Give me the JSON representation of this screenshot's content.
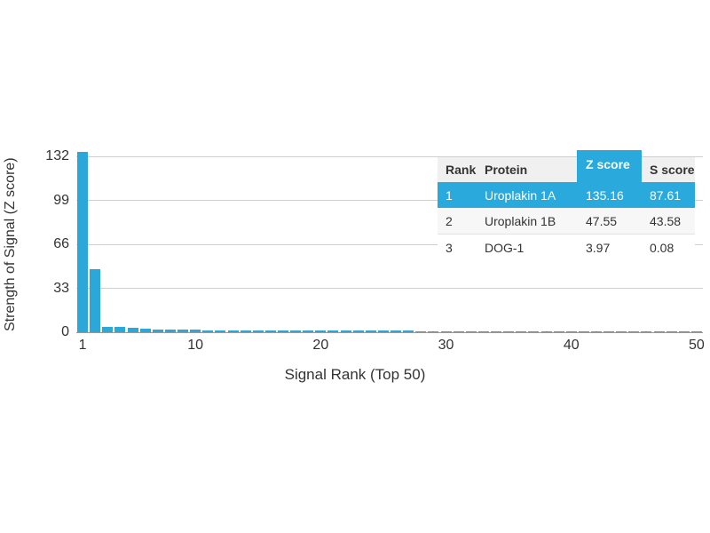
{
  "chart_data": {
    "type": "bar",
    "title": "",
    "xlabel": "Signal Rank (Top 50)",
    "ylabel": "Strength of Signal (Z score)",
    "x": [
      1,
      2,
      3,
      4,
      5,
      6,
      7,
      8,
      9,
      10,
      11,
      12,
      13,
      14,
      15,
      16,
      17,
      18,
      19,
      20,
      21,
      22,
      23,
      24,
      25,
      26,
      27,
      28,
      29,
      30,
      31,
      32,
      33,
      34,
      35,
      36,
      37,
      38,
      39,
      40,
      41,
      42,
      43,
      44,
      45,
      46,
      47,
      48,
      49,
      50
    ],
    "values": [
      135.16,
      47.55,
      3.97,
      3.85,
      3.2,
      2.6,
      2.2,
      1.95,
      1.8,
      1.7,
      1.62,
      1.55,
      1.5,
      1.45,
      1.4,
      1.36,
      1.32,
      1.28,
      1.25,
      1.22,
      1.19,
      1.16,
      1.13,
      1.1,
      1.08,
      1.05,
      1.03,
      1.01,
      0.99,
      0.97,
      0.95,
      0.93,
      0.91,
      0.9,
      0.88,
      0.87,
      0.85,
      0.84,
      0.82,
      0.81,
      0.8,
      0.78,
      0.77,
      0.76,
      0.75,
      0.74,
      0.73,
      0.72,
      0.71,
      0.7
    ],
    "yticks": [
      0,
      33,
      66,
      99,
      132
    ],
    "xticks": [
      1,
      10,
      20,
      30,
      40,
      50
    ],
    "ylim": [
      0,
      136
    ],
    "grid": true,
    "legend": "none",
    "bar_color": "#2BA7DA",
    "gridline_color": "#cfcfcf",
    "axis_line_color": "#999999"
  },
  "table": {
    "columns": [
      "Rank",
      "Protein",
      "Z score",
      "S score"
    ],
    "highlight_color": "#29A9DC",
    "header_bg": "#f0f0f0",
    "rows": [
      {
        "rank": "1",
        "protein": "Uroplakin 1A",
        "z": "135.16",
        "s": "87.61",
        "highlighted": true
      },
      {
        "rank": "2",
        "protein": "Uroplakin 1B",
        "z": "47.55",
        "s": "43.58",
        "highlighted": false
      },
      {
        "rank": "3",
        "protein": "DOG-1",
        "z": "3.97",
        "s": "0.08",
        "highlighted": false
      }
    ]
  }
}
